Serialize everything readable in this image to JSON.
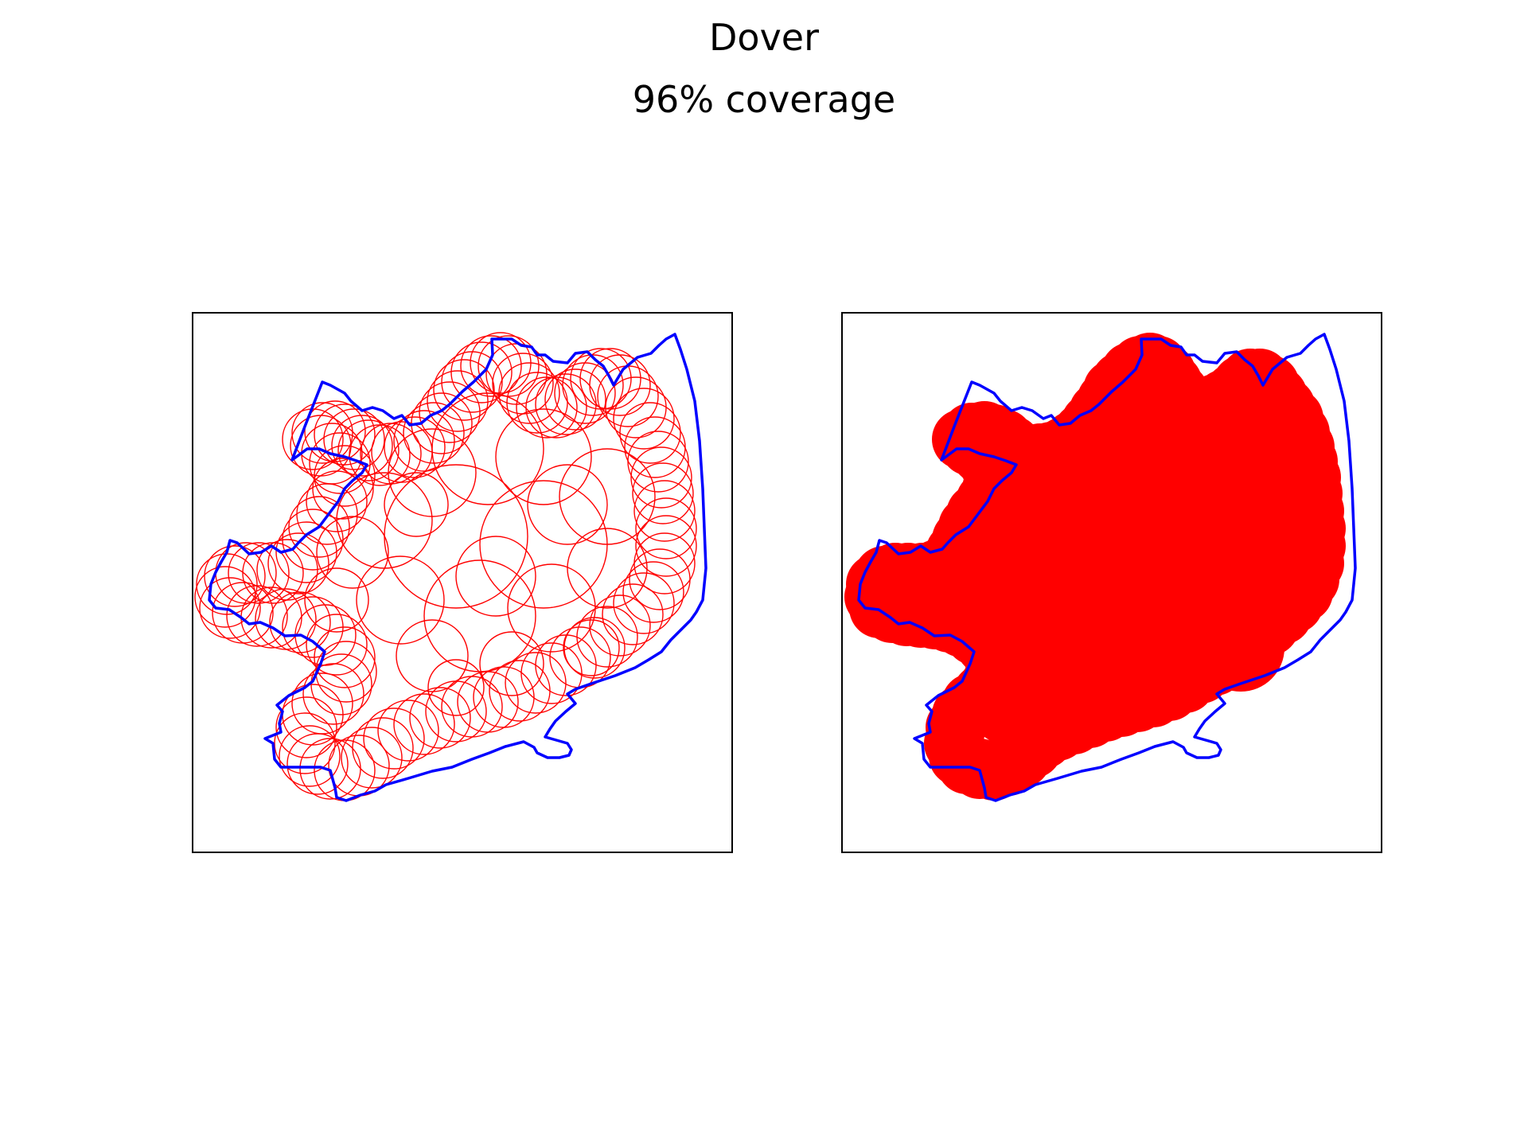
{
  "figure": {
    "title": "Dover",
    "subtitle": "96% coverage"
  },
  "colors": {
    "boundary": "#0000ff",
    "coverage": "#ff0000",
    "frame": "#000000",
    "background": "#ffffff"
  },
  "panels": [
    {
      "id": "left",
      "style": "circle-outlines"
    },
    {
      "id": "right",
      "style": "filled-coverage"
    }
  ],
  "coverage_percent": 96
}
